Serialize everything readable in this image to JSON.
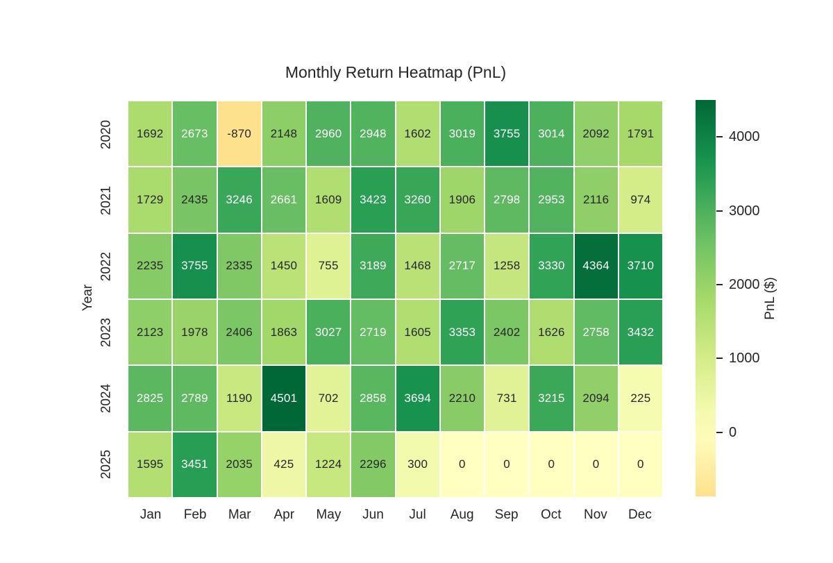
{
  "chart_data": {
    "type": "heatmap",
    "title": "Monthly Return Heatmap (PnL)",
    "xlabel": "",
    "ylabel": "Year",
    "colorbar_label": "PnL ($)",
    "columns": [
      "Jan",
      "Feb",
      "Mar",
      "Apr",
      "May",
      "Jun",
      "Jul",
      "Aug",
      "Sep",
      "Oct",
      "Nov",
      "Dec"
    ],
    "rows": [
      "2020",
      "2021",
      "2022",
      "2023",
      "2024",
      "2025"
    ],
    "values": [
      [
        1692,
        2673,
        -870,
        2148,
        2960,
        2948,
        1602,
        3019,
        3755,
        3014,
        2092,
        1791
      ],
      [
        1729,
        2435,
        3246,
        2661,
        1609,
        3423,
        3260,
        1906,
        2798,
        2953,
        2116,
        974
      ],
      [
        2235,
        3755,
        2335,
        1450,
        755,
        3189,
        1468,
        2717,
        1258,
        3330,
        4364,
        3710
      ],
      [
        2123,
        1978,
        2406,
        1863,
        3027,
        2719,
        1605,
        3353,
        2402,
        1626,
        2758,
        3432
      ],
      [
        2825,
        2789,
        1190,
        4501,
        702,
        2858,
        3694,
        2210,
        731,
        3215,
        2094,
        225
      ],
      [
        1595,
        3451,
        2035,
        425,
        1224,
        2296,
        300,
        0,
        0,
        0,
        0,
        0
      ]
    ],
    "vmin": -870,
    "vmax": 4501,
    "center": 0,
    "colorbar_ticks": [
      0,
      1000,
      2000,
      3000,
      4000
    ],
    "colormap": {
      "name": "RdYlGn",
      "anchors": [
        "#a50026",
        "#d73027",
        "#f46d43",
        "#fdae61",
        "#fee08b",
        "#ffffbf",
        "#d9ef8b",
        "#a6d96a",
        "#66bd63",
        "#1a9850",
        "#006837"
      ]
    },
    "annotation_colors": {
      "dark_text": "#262626",
      "light_text": "#ffffff"
    },
    "grid_gap_color": "#ffffff",
    "legend_position": "right-colorbar"
  }
}
